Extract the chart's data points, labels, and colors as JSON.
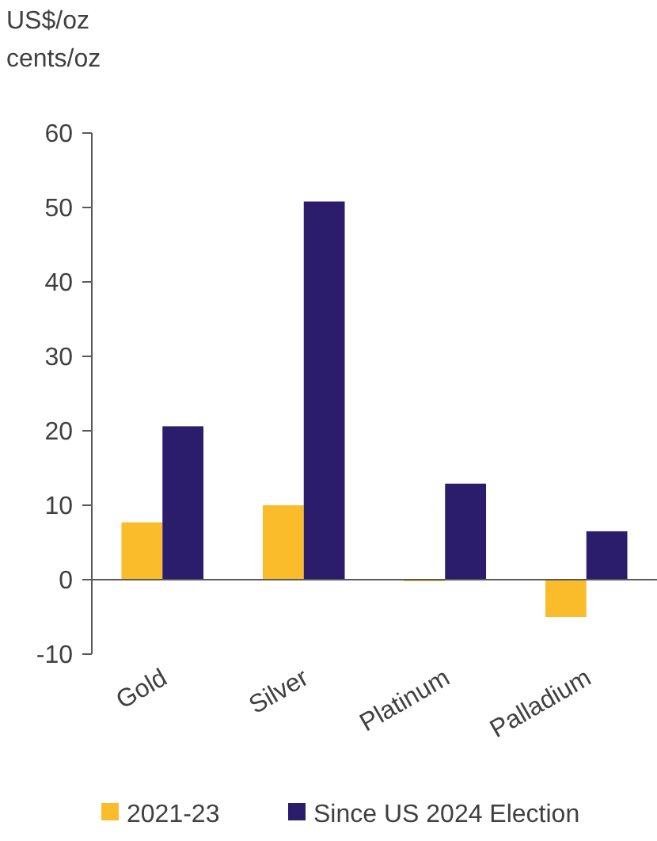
{
  "chart_data": {
    "type": "bar",
    "ylabel": "US$/oz\ncents/oz",
    "categories": [
      "Gold",
      "Silver",
      "Platinum",
      "Palladium"
    ],
    "series": [
      {
        "name": "2021-23",
        "color": "#fbbc2b",
        "values": [
          7.7,
          10.0,
          -0.2,
          -5.0
        ]
      },
      {
        "name": "Since US 2024 Election",
        "color": "#2b1d6b",
        "values": [
          20.6,
          50.8,
          12.9,
          6.5
        ]
      }
    ],
    "ylim": [
      -10,
      60
    ],
    "yticks": [
      -10,
      0,
      10,
      20,
      30,
      40,
      50,
      60
    ],
    "legend": "bottom"
  }
}
